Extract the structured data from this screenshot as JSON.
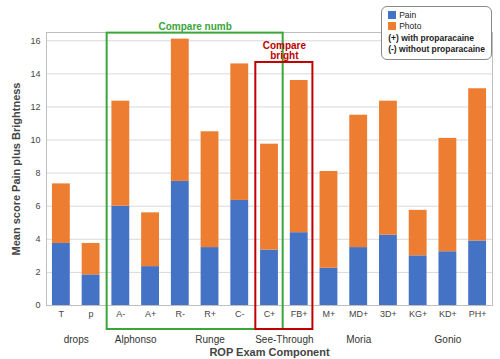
{
  "chart_data": {
    "type": "bar",
    "stacked": true,
    "x_label": "ROP Exam Component",
    "y_label": "Mean score Pain plus Brightness",
    "categories": [
      "T",
      "p",
      "A-",
      "A+",
      "R-",
      "R+",
      "C-",
      "C+",
      "FB+",
      "M+",
      "MD+",
      "3D+",
      "KG+",
      "KD+",
      "PH+"
    ],
    "series": [
      {
        "name": "Pain",
        "color": "#4472c4",
        "values": [
          3.75,
          1.85,
          6.0,
          2.35,
          7.5,
          3.5,
          6.35,
          3.35,
          4.4,
          2.25,
          3.5,
          4.25,
          3.0,
          3.25,
          3.9
        ]
      },
      {
        "name": "Photo",
        "color": "#ed7d31",
        "values": [
          3.6,
          1.9,
          6.35,
          3.25,
          8.6,
          7.0,
          8.25,
          6.4,
          9.2,
          5.85,
          8.0,
          8.1,
          2.75,
          6.85,
          9.2
        ]
      }
    ],
    "ylim": [
      0,
      16.5
    ],
    "yticks": [
      0,
      2,
      4,
      6,
      8,
      10,
      12,
      14,
      16
    ],
    "grid": true,
    "legend": "top-right",
    "legend_notes": [
      "(+) with proparacaine",
      "(-) without proparacaine"
    ],
    "groups": [
      {
        "label": "drops",
        "categories": [
          "T",
          "p"
        ]
      },
      {
        "label": "Alphonso",
        "categories": [
          "A-",
          "A+"
        ]
      },
      {
        "label": "Runge",
        "categories": [
          "R-",
          "R+",
          "C-"
        ]
      },
      {
        "label": "See-Through",
        "categories": [
          "C+",
          "FB+"
        ]
      },
      {
        "label": "Moria",
        "categories": [
          "M+",
          "MD+",
          "3D+"
        ]
      },
      {
        "label": "Gonio",
        "categories": [
          "KG+",
          "KD+",
          "PH+"
        ]
      }
    ],
    "annotations": [
      {
        "text": "Compare numb",
        "color": "#3aa63a",
        "from": "A-",
        "to": "C+"
      },
      {
        "text": "Compare\nbright",
        "color": "#c00000",
        "from": "C+",
        "to": "FB+"
      }
    ]
  }
}
